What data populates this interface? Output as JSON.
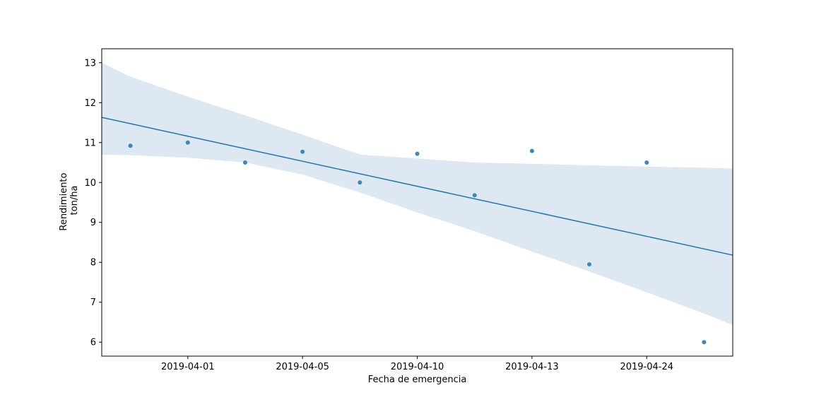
{
  "chart_data": {
    "type": "scatter",
    "xlabel": "Fecha de emergencia",
    "ylabel": [
      "Rendimiento",
      "ton/ha"
    ],
    "x_tick_labels": [
      "2019-04-01",
      "2019-04-05",
      "2019-04-10",
      "2019-04-13",
      "2019-04-24"
    ],
    "y_ticks": [
      6,
      7,
      8,
      9,
      10,
      11,
      12,
      13
    ],
    "ylim": [
      5.65,
      13.35
    ],
    "xlim": [
      -0.5,
      10.5
    ],
    "points": [
      {
        "x": 0,
        "y": 10.92
      },
      {
        "x": 1,
        "y": 11.0
      },
      {
        "x": 2,
        "y": 10.5
      },
      {
        "x": 3,
        "y": 10.77
      },
      {
        "x": 4,
        "y": 10.0
      },
      {
        "x": 5,
        "y": 10.72
      },
      {
        "x": 6,
        "y": 9.68
      },
      {
        "x": 7,
        "y": 10.79
      },
      {
        "x": 8,
        "y": 7.95
      },
      {
        "x": 9,
        "y": 10.5
      },
      {
        "x": 10,
        "y": 6.0
      }
    ],
    "regression": {
      "start": [
        -0.5,
        11.63
      ],
      "end": [
        10.5,
        8.18
      ]
    },
    "confidence_band": {
      "x": [
        -0.5,
        0.0,
        1.0,
        2.0,
        3.0,
        4.0,
        5.0,
        6.0,
        7.0,
        8.0,
        9.0,
        10.0,
        10.5
      ],
      "upper": [
        13.0,
        12.65,
        12.15,
        11.68,
        11.2,
        10.7,
        10.6,
        10.5,
        10.47,
        10.43,
        10.4,
        10.37,
        10.35
      ],
      "lower": [
        10.7,
        10.68,
        10.62,
        10.5,
        10.2,
        9.75,
        9.25,
        8.78,
        8.27,
        7.77,
        7.25,
        6.72,
        6.43
      ]
    },
    "colors": {
      "points": "#3a86bd",
      "line": "#1f77b4",
      "band": "#dde8f3"
    },
    "grid": false,
    "legend": "none"
  }
}
